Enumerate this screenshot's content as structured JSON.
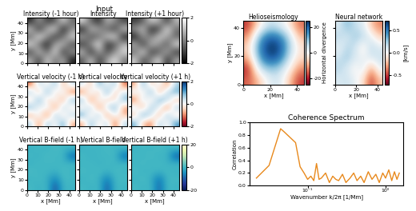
{
  "suptitle": "Input",
  "chart_data": [
    {
      "type": "heatmap",
      "title": "Intensity (-1 hour)",
      "ylabel": "y [Mm]",
      "tick_labels": "y",
      "xlim": [
        0,
        45
      ],
      "ylim": [
        0,
        45
      ],
      "xticks": [
        0,
        10,
        20,
        30,
        40
      ],
      "yticks": [
        0,
        10,
        20,
        30,
        40
      ],
      "cells": [
        [
          0.8,
          -1.2,
          1.5,
          -0.4,
          0.9,
          -1.6
        ],
        [
          -1.0,
          1.3,
          -0.6,
          1.8,
          -1.4,
          0.5
        ],
        [
          1.6,
          -0.3,
          -1.7,
          0.7,
          1.1,
          -0.9
        ],
        [
          -0.5,
          1.9,
          0.4,
          -1.3,
          -0.2,
          1.4
        ],
        [
          1.2,
          -1.5,
          0.9,
          1.6,
          -1.8,
          0.3
        ],
        [
          -1.4,
          0.6,
          -1.1,
          -0.7,
          1.5,
          -0.4
        ]
      ]
    },
    {
      "type": "heatmap",
      "title": "Intensity",
      "tick_labels": false,
      "xlim": [
        0,
        45
      ],
      "ylim": [
        0,
        45
      ],
      "xticks": [
        0,
        10,
        20,
        30,
        40
      ],
      "yticks": [
        0,
        10,
        20,
        30,
        40
      ],
      "cells": [
        [
          -0.7,
          1.4,
          -1.3,
          0.6,
          1.7,
          -0.2
        ],
        [
          1.1,
          -1.6,
          0.8,
          -0.9,
          0.3,
          1.5
        ],
        [
          -1.2,
          0.4,
          1.9,
          -1.5,
          -0.6,
          0.9
        ],
        [
          0.7,
          -0.8,
          -0.3,
          1.2,
          1.6,
          -1.7
        ],
        [
          -1.6,
          1.1,
          0.5,
          -0.4,
          -1.1,
          1.3
        ],
        [
          1.5,
          -0.5,
          -1.4,
          1.0,
          0.2,
          -1.0
        ]
      ]
    },
    {
      "type": "heatmap",
      "title": "Intensity (+1 hour)",
      "tick_labels": false,
      "xlim": [
        0,
        45
      ],
      "ylim": [
        0,
        45
      ],
      "xticks": [
        0,
        10,
        20,
        30,
        40
      ],
      "yticks": [
        0,
        10,
        20,
        30,
        40
      ],
      "colorbar": {
        "range": [
          -2,
          2
        ],
        "ticks": [
          -2,
          0,
          2
        ]
      },
      "cells": [
        [
          1.3,
          -0.9,
          0.2,
          1.6,
          -1.5,
          0.7
        ],
        [
          -0.4,
          1.8,
          -1.2,
          -0.6,
          1.0,
          -1.3
        ],
        [
          0.9,
          -1.4,
          1.1,
          0.3,
          -0.8,
          1.7
        ],
        [
          -1.7,
          0.5,
          -0.2,
          1.4,
          0.6,
          -0.5
        ],
        [
          0.4,
          1.2,
          -1.6,
          -1.0,
          1.9,
          -0.3
        ],
        [
          -1.1,
          -0.6,
          1.4,
          0.8,
          -1.2,
          1.0
        ]
      ]
    },
    {
      "type": "heatmap",
      "title": "Vertical velocity (-1 h)",
      "ylabel": "y [Mm]",
      "tick_labels": "y",
      "xlim": [
        0,
        45
      ],
      "ylim": [
        0,
        45
      ],
      "xticks": [
        0,
        10,
        20,
        30,
        40
      ],
      "yticks": [
        0,
        10,
        20,
        30,
        40
      ],
      "cells": [
        [
          0.6,
          -1.1,
          0.9,
          -0.3,
          1.2,
          -0.8
        ],
        [
          -0.9,
          0.4,
          -1.4,
          1.0,
          -0.5,
          0.7
        ],
        [
          1.1,
          -0.2,
          0.5,
          -1.2,
          0.8,
          -0.4
        ],
        [
          -0.6,
          1.3,
          -0.7,
          0.3,
          -1.0,
          1.1
        ],
        [
          0.8,
          -0.9,
          1.2,
          -0.5,
          0.4,
          -1.3
        ],
        [
          -1.2,
          0.7,
          -0.3,
          0.9,
          -0.8,
          0.5
        ]
      ]
    },
    {
      "type": "heatmap",
      "title": "Vertical velocity",
      "tick_labels": false,
      "xlim": [
        0,
        45
      ],
      "ylim": [
        0,
        45
      ],
      "xticks": [
        0,
        10,
        20,
        30,
        40
      ],
      "yticks": [
        0,
        10,
        20,
        30,
        40
      ],
      "cells": [
        [
          -0.8,
          1.0,
          -0.4,
          0.7,
          -1.3,
          0.6
        ],
        [
          1.2,
          -0.5,
          0.9,
          -1.1,
          0.3,
          -0.7
        ],
        [
          -0.3,
          0.8,
          -1.2,
          0.5,
          1.1,
          -0.9
        ],
        [
          0.9,
          -1.3,
          0.4,
          -0.6,
          -0.4,
          1.0
        ],
        [
          -1.1,
          0.5,
          -0.8,
          1.3,
          -0.7,
          0.3
        ],
        [
          0.4,
          -0.7,
          1.1,
          -0.2,
          0.9,
          -1.2
        ]
      ]
    },
    {
      "type": "heatmap",
      "title": "Vertical velocity (+1 h)",
      "tick_labels": false,
      "xlim": [
        0,
        45
      ],
      "ylim": [
        0,
        45
      ],
      "xticks": [
        0,
        10,
        20,
        30,
        40
      ],
      "yticks": [
        0,
        10,
        20,
        30,
        40
      ],
      "colorbar": {
        "range": [
          -2,
          2
        ],
        "ticks": [
          -2,
          0,
          2
        ]
      },
      "cells": [
        [
          1.0,
          -0.6,
          -1.1,
          0.8,
          -0.3,
          1.2
        ],
        [
          -0.7,
          1.3,
          0.4,
          -0.9,
          1.0,
          -0.5
        ],
        [
          0.5,
          -1.0,
          0.9,
          0.2,
          -1.3,
          0.8
        ],
        [
          -1.2,
          0.6,
          -0.5,
          1.1,
          0.7,
          -0.8
        ],
        [
          0.3,
          -0.4,
          1.2,
          -1.0,
          0.5,
          1.1
        ],
        [
          -0.9,
          1.1,
          -0.7,
          0.4,
          -1.1,
          0.6
        ]
      ]
    },
    {
      "type": "heatmap",
      "title": "Vertical B-field (-1 h)",
      "xlabel": "x [Mm]",
      "ylabel": "y [Mm]",
      "xlim": [
        0,
        45
      ],
      "ylim": [
        0,
        45
      ],
      "xticks": [
        0,
        10,
        20,
        30,
        40
      ],
      "yticks": [
        0,
        10,
        20,
        30,
        40
      ],
      "cells": [
        [
          0.5,
          -1.0,
          0.8,
          -12.0,
          0.3,
          -0.6
        ],
        [
          -0.4,
          0.7,
          -0.9,
          -6.0,
          0.6,
          0.2
        ],
        [
          0.9,
          -0.3,
          0.4,
          -0.8,
          1.1,
          -0.5
        ],
        [
          -0.7,
          0.6,
          -0.2,
          0.5,
          -0.4,
          0.8
        ],
        [
          0.2,
          -0.8,
          1.0,
          -0.3,
          0.7,
          -10.0
        ],
        [
          -0.5,
          0.4,
          -0.6,
          0.9,
          -0.2,
          0.3
        ]
      ]
    },
    {
      "type": "heatmap",
      "title": "Vertical B-field",
      "xlabel": "x [Mm]",
      "tick_labels": "x",
      "xlim": [
        0,
        45
      ],
      "ylim": [
        0,
        45
      ],
      "xticks": [
        0,
        10,
        20,
        30,
        40
      ],
      "yticks": [
        0,
        10,
        20,
        30,
        40
      ],
      "cells": [
        [
          0.4,
          -0.7,
          0.6,
          -11.0,
          0.5,
          -0.4
        ],
        [
          -0.6,
          0.8,
          -0.5,
          -7.0,
          0.3,
          0.6
        ],
        [
          0.7,
          -0.4,
          0.9,
          -0.6,
          0.8,
          -0.3
        ],
        [
          -0.3,
          0.5,
          -0.8,
          0.4,
          -0.6,
          0.9
        ],
        [
          0.6,
          -0.9,
          0.3,
          -0.2,
          0.9,
          -9.0
        ],
        [
          -0.8,
          0.2,
          -0.4,
          0.7,
          -0.5,
          0.4
        ]
      ]
    },
    {
      "type": "heatmap",
      "title": "Vertical B-field (+1 h)",
      "xlabel": "x [Mm]",
      "tick_labels": "x",
      "xlim": [
        0,
        45
      ],
      "ylim": [
        0,
        45
      ],
      "xticks": [
        0,
        10,
        20,
        30,
        40
      ],
      "yticks": [
        0,
        10,
        20,
        30,
        40
      ],
      "colorbar": {
        "range": [
          -20,
          20
        ],
        "ticks": [
          -20,
          0,
          20
        ]
      },
      "cells": [
        [
          0.6,
          -0.5,
          0.4,
          -10.0,
          0.7,
          -0.3
        ],
        [
          -0.5,
          0.9,
          -0.7,
          -8.0,
          0.4,
          0.5
        ],
        [
          0.8,
          -0.6,
          0.5,
          -0.4,
          0.6,
          -0.7
        ],
        [
          -0.4,
          0.7,
          -0.5,
          0.6,
          -0.8,
          0.5
        ],
        [
          0.5,
          -0.3,
          0.8,
          -0.6,
          0.4,
          -11.0
        ],
        [
          -0.6,
          0.5,
          -0.3,
          0.8,
          -0.4,
          0.6
        ]
      ]
    },
    {
      "type": "heatmap",
      "title": "Helioseismology",
      "xlabel": "x [Mm]",
      "ylabel": "y [Mm]",
      "xlim": [
        0,
        45
      ],
      "ylim": [
        0,
        45
      ],
      "xticks": [
        0,
        20,
        40
      ],
      "yticks": [
        0,
        20,
        40
      ],
      "colorbar": {
        "range": [
          -25,
          25
        ],
        "ticks": [
          -20,
          0,
          20
        ],
        "label": "Horizontal divergence"
      },
      "cells": [
        [
          -15,
          -8,
          2,
          5,
          -6,
          -18
        ],
        [
          -20,
          4,
          10,
          8,
          0,
          -12
        ],
        [
          -10,
          12,
          22,
          20,
          6,
          -5
        ],
        [
          -6,
          15,
          25,
          24,
          10,
          -3
        ],
        [
          -12,
          10,
          20,
          18,
          8,
          -8
        ],
        [
          -18,
          -4,
          6,
          4,
          -2,
          -14
        ]
      ]
    },
    {
      "type": "heatmap",
      "title": "Neural network",
      "xlabel": "x [Mm]",
      "tick_labels": "x",
      "xlim": [
        0,
        45
      ],
      "ylim": [
        0,
        45
      ],
      "xticks": [
        0,
        20,
        40
      ],
      "yticks": [
        0,
        20,
        40
      ],
      "colorbar": {
        "range": [
          -0.7,
          0.7
        ],
        "ticks": [
          -0.5,
          0.0,
          0.5
        ],
        "label": "[km/s]"
      },
      "cells": [
        [
          0.1,
          0.15,
          0.05,
          -0.1,
          -0.5,
          -0.2
        ],
        [
          0.2,
          0.1,
          -0.05,
          0.1,
          -0.3,
          0.05
        ],
        [
          0.15,
          0.25,
          0.1,
          0.05,
          0.1,
          0.15
        ],
        [
          0.05,
          0.2,
          0.15,
          -0.1,
          0.2,
          0.1
        ],
        [
          0.2,
          0.1,
          0.25,
          0.2,
          0.05,
          -0.15
        ],
        [
          0.1,
          0.3,
          0.15,
          0.1,
          -0.2,
          -0.35
        ]
      ]
    },
    {
      "type": "line",
      "title": "Coherence Spectrum",
      "xlabel": "Wavenumber k/2π [1/Mm]",
      "ylabel": "Correlation",
      "log": "x",
      "color": "#e8891c",
      "x": [
        0.022,
        0.032,
        0.045,
        0.05,
        0.07,
        0.08,
        0.09,
        0.1,
        0.11,
        0.12,
        0.13,
        0.14,
        0.15,
        0.17,
        0.19,
        0.21,
        0.23,
        0.25,
        0.28,
        0.31,
        0.35,
        0.39,
        0.43,
        0.48,
        0.53,
        0.6,
        0.67,
        0.75,
        0.83,
        0.92,
        1.0,
        1.1,
        1.2,
        1.3,
        1.4,
        1.5
      ],
      "values": [
        0.12,
        0.32,
        0.9,
        0.85,
        0.68,
        0.3,
        0.2,
        0.1,
        0.15,
        0.08,
        0.35,
        0.1,
        0.12,
        0.2,
        0.05,
        0.15,
        0.1,
        0.08,
        0.18,
        0.05,
        0.12,
        0.2,
        0.08,
        0.15,
        0.05,
        0.22,
        0.1,
        0.18,
        0.05,
        0.2,
        0.12,
        0.25,
        0.08,
        0.22,
        0.1,
        0.2
      ],
      "xlim": [
        0.018,
        1.7
      ],
      "ylim": [
        0.0,
        1.0
      ],
      "xticks": [
        {
          "value": 0.1,
          "label": "10⁻¹"
        },
        {
          "value": 1,
          "label": "10⁰"
        }
      ],
      "yticks": [
        0.0,
        0.2,
        0.4,
        0.6,
        0.8,
        1.0
      ]
    }
  ]
}
